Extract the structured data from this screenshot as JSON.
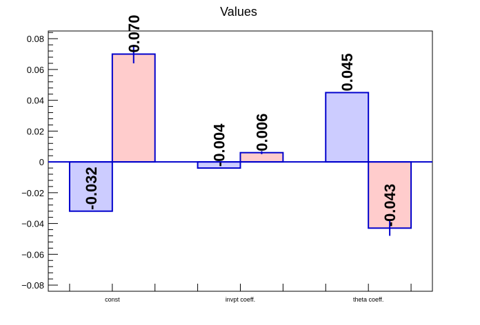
{
  "chart_data": {
    "type": "bar",
    "title": "Values",
    "categories": [
      "const",
      "invpt coeff.",
      "theta coeff."
    ],
    "series": [
      {
        "values": [
          -0.032,
          -0.004,
          0.045
        ],
        "errors": [
          0.0,
          0.0,
          0.0
        ],
        "color": "#ccccff"
      },
      {
        "values": [
          0.07,
          0.006,
          -0.043
        ],
        "errors": [
          0.006,
          0.001,
          0.005
        ],
        "color": "#ffcccc"
      }
    ],
    "data_labels": [
      [
        "-0.032",
        "-0.004",
        "0.045"
      ],
      [
        "0.070",
        "0.006",
        "-0.043"
      ]
    ],
    "ylim": [
      -0.084,
      0.085
    ],
    "yticks": [
      -0.08,
      -0.06,
      -0.04,
      -0.02,
      0,
      0.02,
      0.04,
      0.06,
      0.08
    ],
    "ytick_labels": [
      "−0.08",
      "−0.06",
      "−0.04",
      "−0.02",
      "0",
      "0.02",
      "0.04",
      "0.06",
      "0.08"
    ],
    "grid": false,
    "edge_color": "#0000cc",
    "xlabel": "",
    "ylabel": ""
  }
}
